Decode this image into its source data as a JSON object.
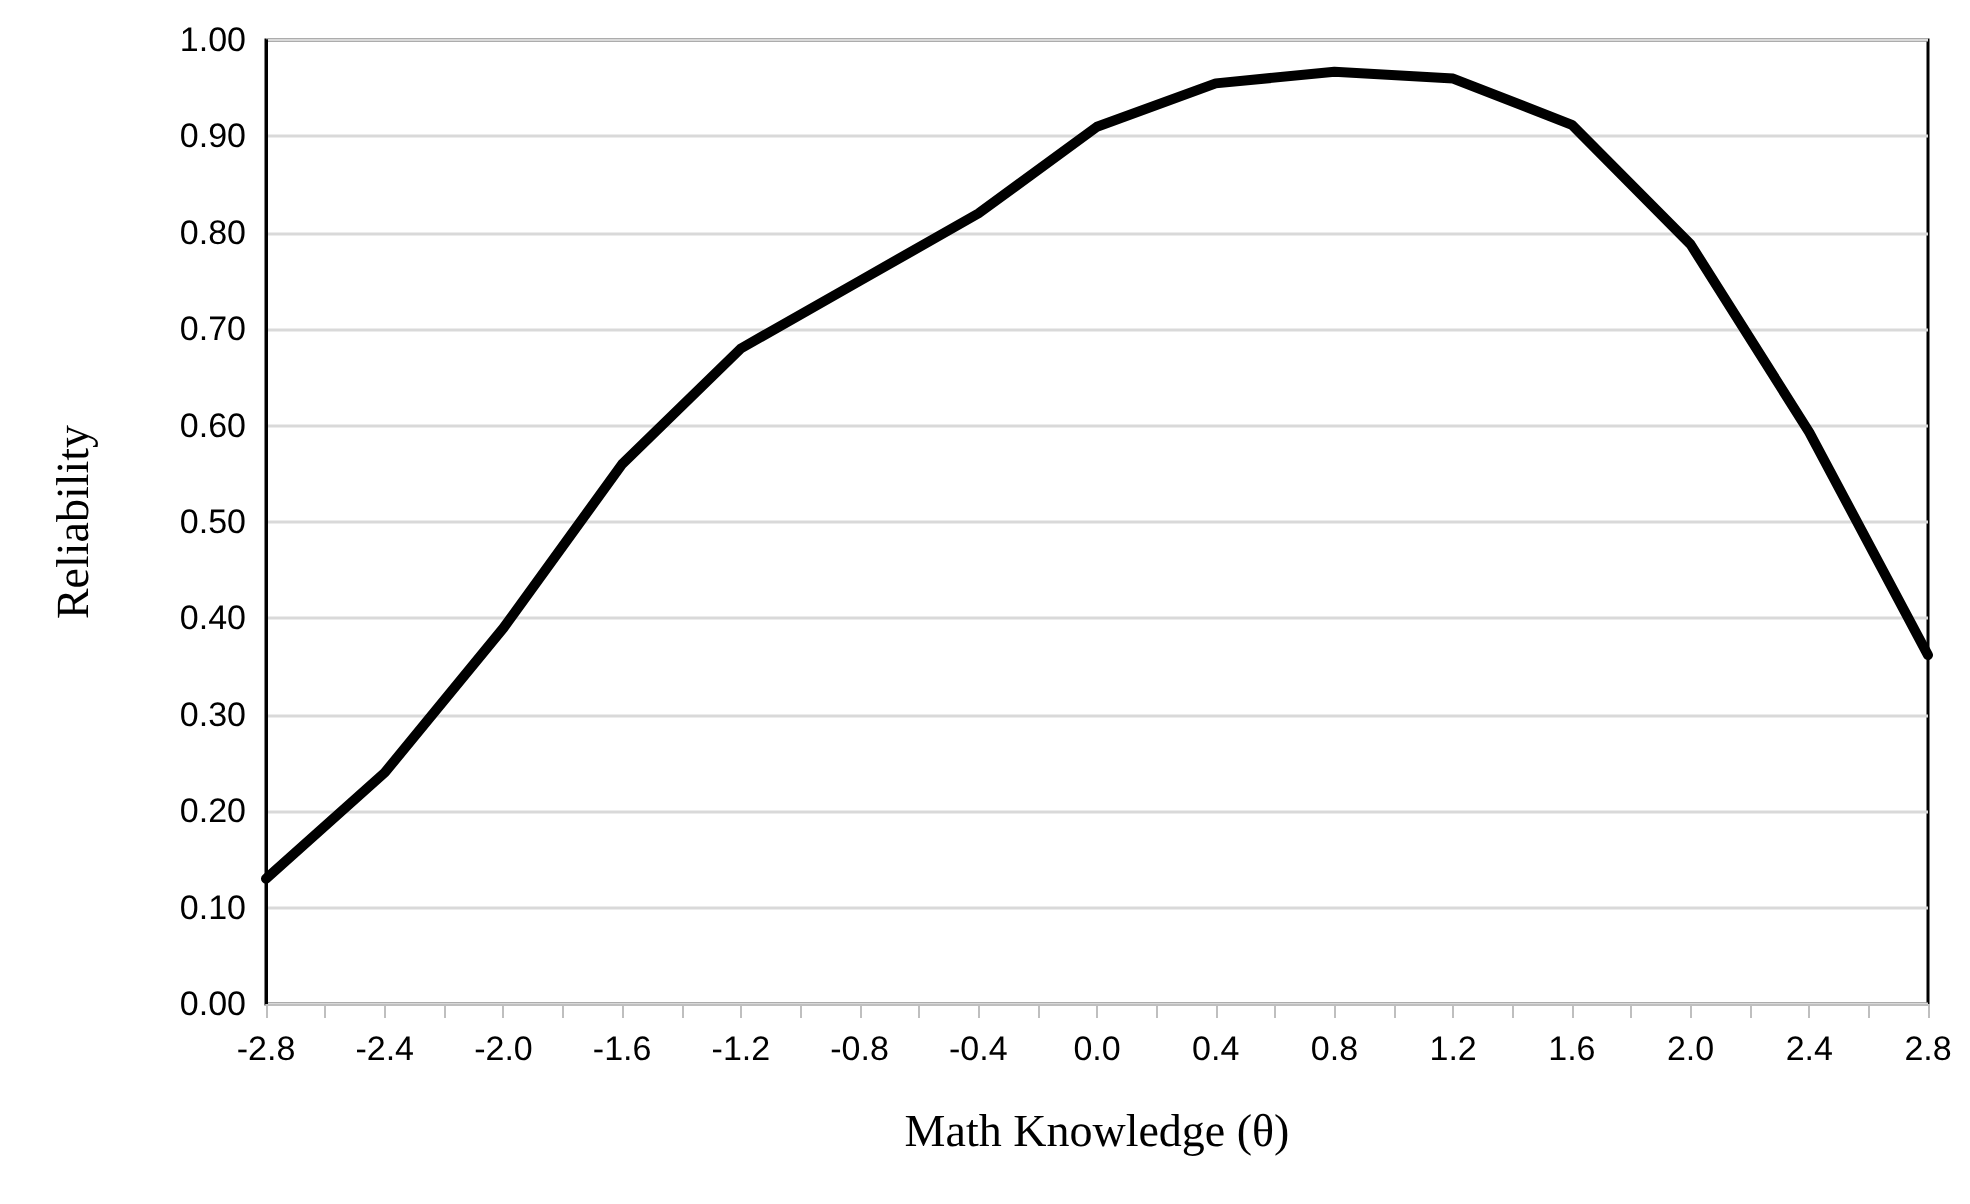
{
  "chart_data": {
    "type": "line",
    "xlabel": "Math Knowledge (θ)",
    "ylabel": "Reliability",
    "x": [
      -2.8,
      -2.4,
      -2.0,
      -1.6,
      -1.2,
      -0.8,
      -0.4,
      0.0,
      0.4,
      0.8,
      1.2,
      1.6,
      2.0,
      2.4,
      2.8
    ],
    "series": [
      {
        "color": "#000000",
        "values": [
          0.13,
          0.24,
          0.39,
          0.56,
          0.68,
          0.75,
          0.82,
          0.91,
          0.955,
          0.967,
          0.96,
          0.912,
          0.788,
          0.593,
          0.362
        ]
      }
    ],
    "xlim": [
      -2.8,
      2.8
    ],
    "xticks": [
      {
        "value": -2.8,
        "label": "-2.8"
      },
      {
        "value": -2.6,
        "label": null
      },
      {
        "value": -2.4,
        "label": "-2.4"
      },
      {
        "value": -2.2,
        "label": null
      },
      {
        "value": -2.0,
        "label": "-2.0"
      },
      {
        "value": -1.8,
        "label": null
      },
      {
        "value": -1.6,
        "label": "-1.6"
      },
      {
        "value": -1.4,
        "label": null
      },
      {
        "value": -1.2,
        "label": "-1.2"
      },
      {
        "value": -1.0,
        "label": null
      },
      {
        "value": -0.8,
        "label": "-0.8"
      },
      {
        "value": -0.6,
        "label": null
      },
      {
        "value": -0.4,
        "label": "-0.4"
      },
      {
        "value": -0.2,
        "label": null
      },
      {
        "value": 0.0,
        "label": "0.0"
      },
      {
        "value": 0.2,
        "label": null
      },
      {
        "value": 0.4,
        "label": "0.4"
      },
      {
        "value": 0.6,
        "label": null
      },
      {
        "value": 0.8,
        "label": "0.8"
      },
      {
        "value": 1.0,
        "label": null
      },
      {
        "value": 1.2,
        "label": "1.2"
      },
      {
        "value": 1.4,
        "label": null
      },
      {
        "value": 1.6,
        "label": "1.6"
      },
      {
        "value": 1.8,
        "label": null
      },
      {
        "value": 2.0,
        "label": "2.0"
      },
      {
        "value": 2.2,
        "label": null
      },
      {
        "value": 2.4,
        "label": "2.4"
      },
      {
        "value": 2.6,
        "label": null
      },
      {
        "value": 2.8,
        "label": "2.8"
      }
    ],
    "ylim": [
      0,
      1
    ],
    "yticks": [
      {
        "value": 0,
        "label": "0.00"
      },
      {
        "value": 0.1,
        "label": "0.10"
      },
      {
        "value": 0.2,
        "label": "0.20"
      },
      {
        "value": 0.3,
        "label": "0.30"
      },
      {
        "value": 0.4,
        "label": "0.40"
      },
      {
        "value": 0.5,
        "label": "0.50"
      },
      {
        "value": 0.6,
        "label": "0.60"
      },
      {
        "value": 0.7,
        "label": "0.70"
      },
      {
        "value": 0.8,
        "label": "0.80"
      },
      {
        "value": 0.9,
        "label": "0.90"
      },
      {
        "value": 1.0,
        "label": "1.00"
      }
    ],
    "grid": "y",
    "marker": "none",
    "line_style": "solid"
  }
}
